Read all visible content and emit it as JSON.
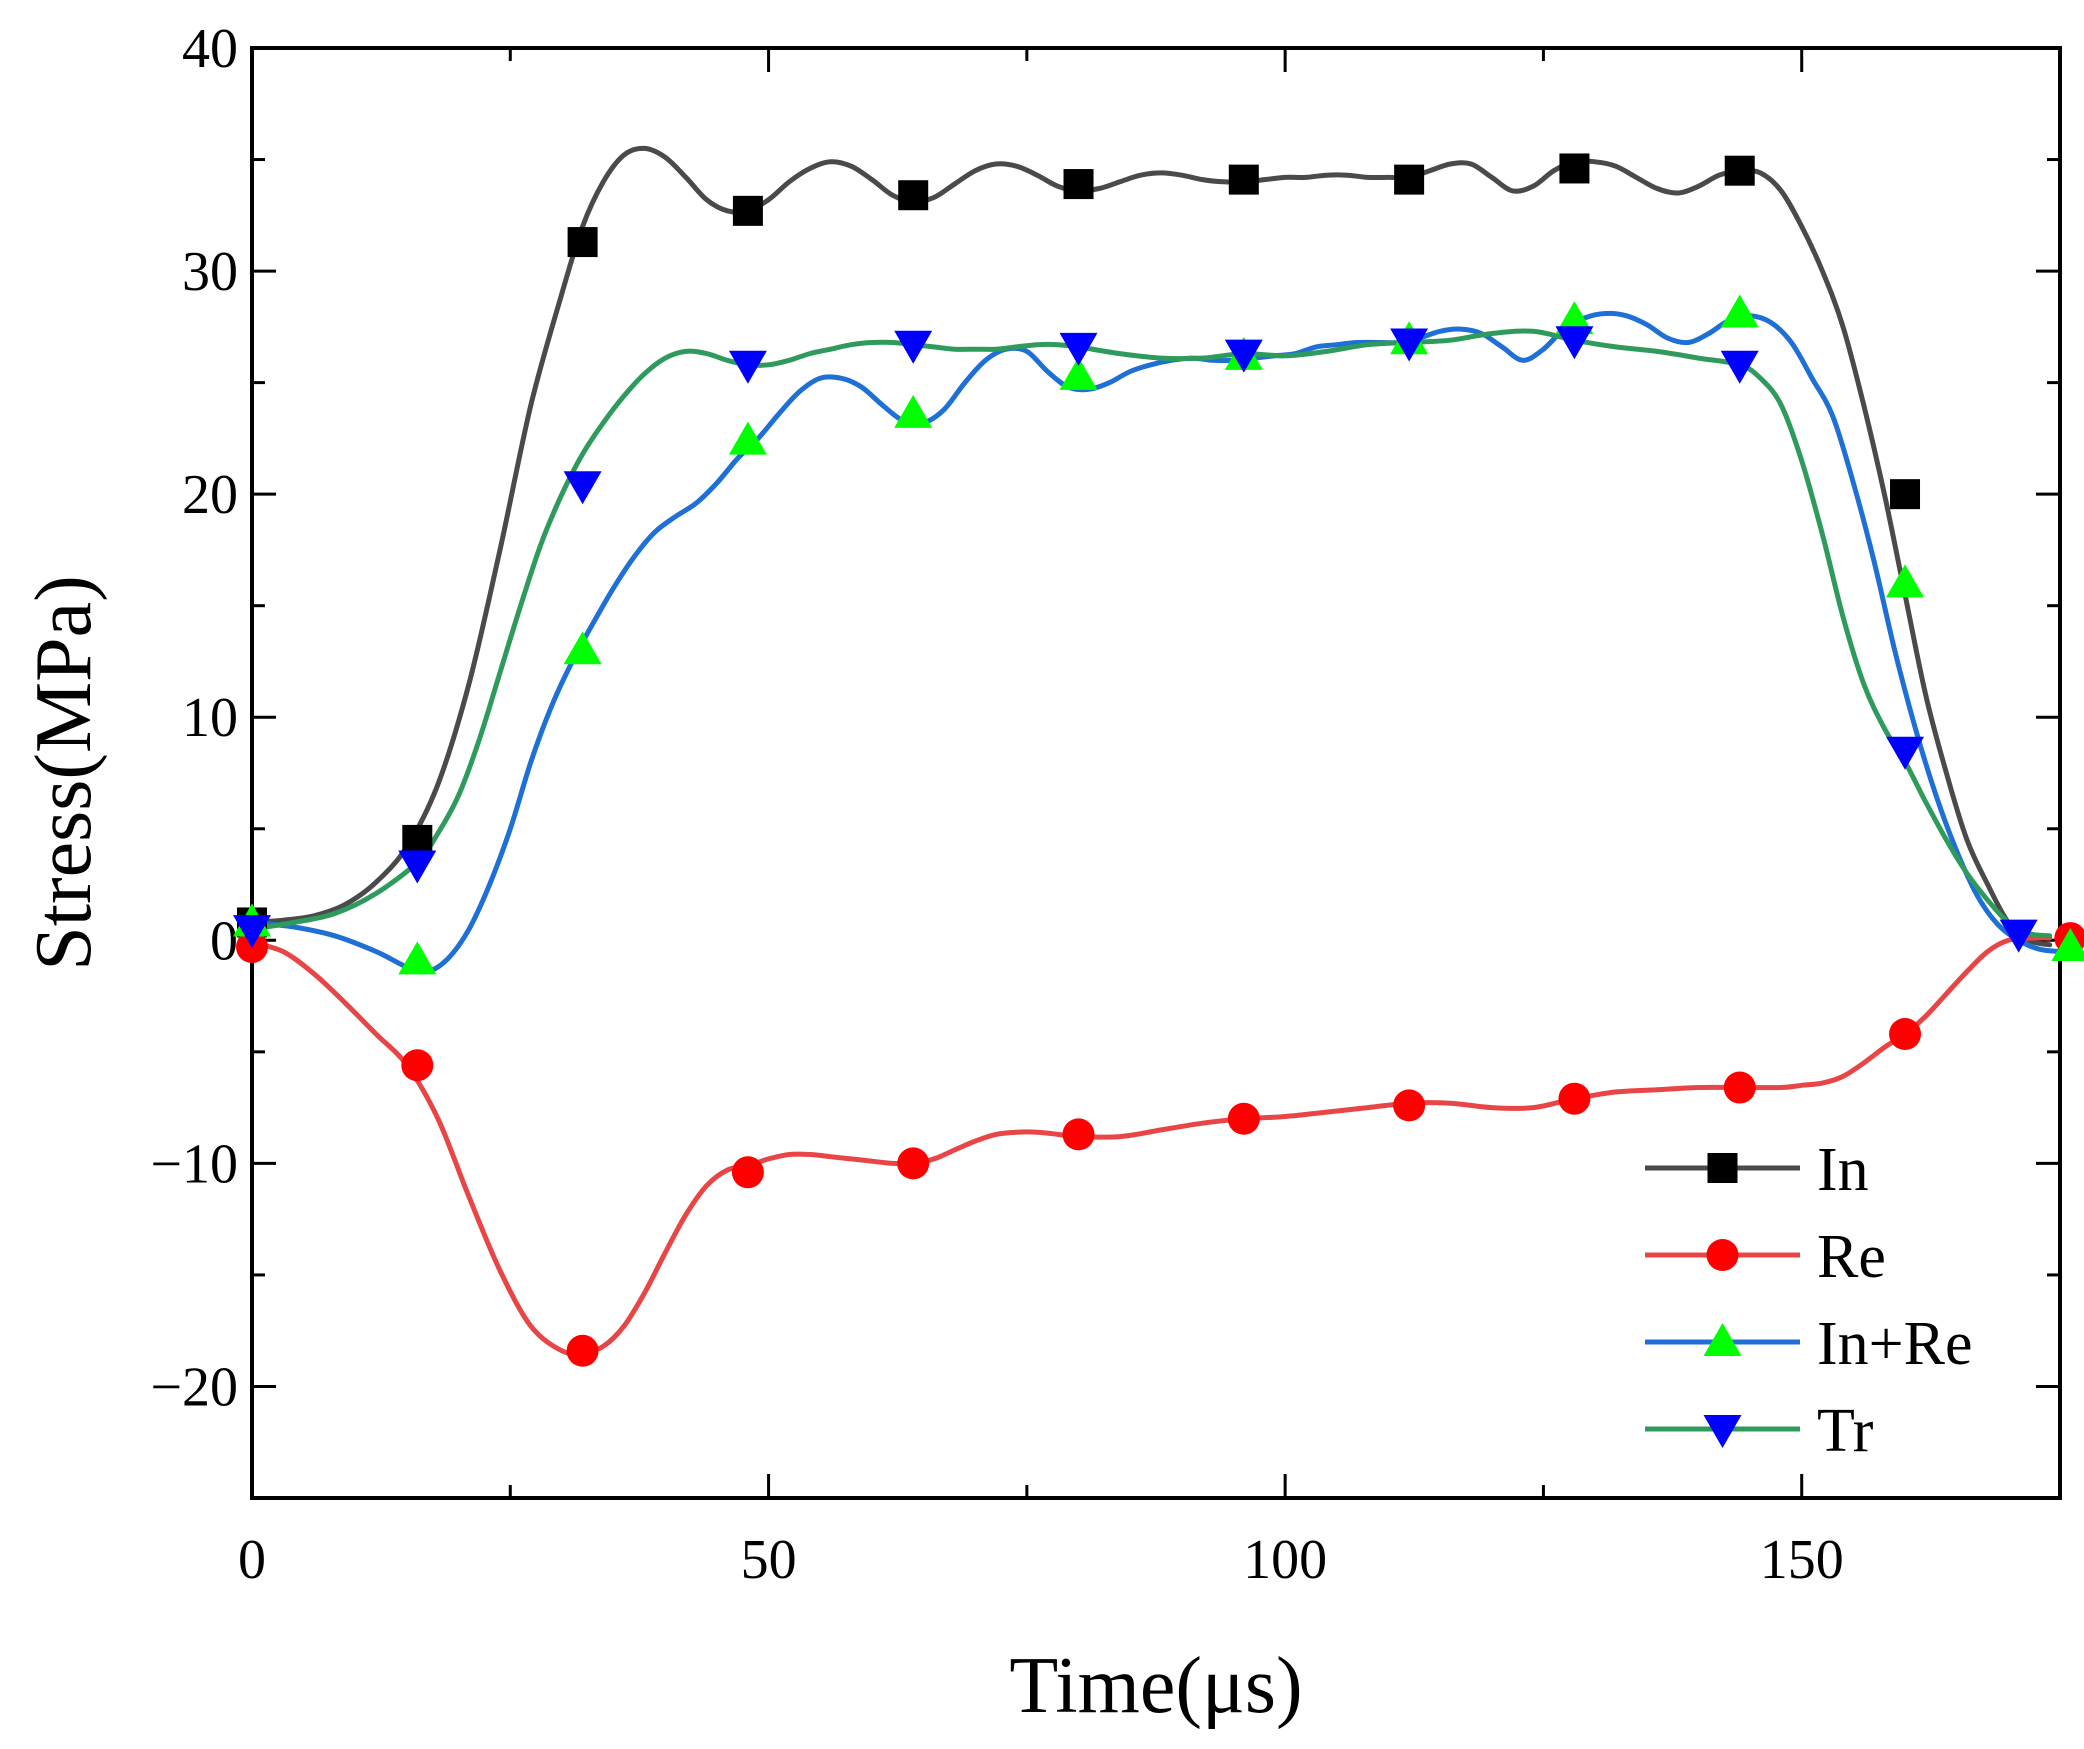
{
  "chart_data": {
    "type": "line",
    "title": "",
    "xlabel": "Time(μs)",
    "ylabel": "Stress(MPa)",
    "xlim": [
      0,
      175
    ],
    "ylim": [
      -25,
      40
    ],
    "xticks": [
      0,
      50,
      100,
      150
    ],
    "xtick_labels": [
      "0",
      "50",
      "100",
      "150"
    ],
    "yticks": [
      -20,
      -10,
      0,
      10,
      20,
      30,
      40
    ],
    "ytick_labels": [
      "−20",
      "−10",
      "0",
      "10",
      "20",
      "30",
      "40"
    ],
    "x_minor_step": 25,
    "y_minor_step": 5,
    "grid": false,
    "legend_position": "bottom-right",
    "series": [
      {
        "name": "In",
        "color": "#4a4a4a",
        "marker": "square",
        "marker_color": "#000000",
        "x": [
          0,
          3,
          6,
          9,
          12,
          15,
          18,
          21,
          24,
          27,
          30,
          32,
          34,
          36,
          38,
          40,
          42,
          44,
          46,
          48,
          50,
          52,
          54,
          56,
          58,
          60,
          62,
          64,
          66,
          68,
          70,
          72,
          74,
          76,
          78,
          80,
          82,
          84,
          86,
          88,
          90,
          92,
          94,
          96,
          98,
          100,
          102,
          104,
          106,
          108,
          110,
          112,
          114,
          116,
          118,
          120,
          122,
          124,
          126,
          128,
          130,
          132,
          134,
          136,
          138,
          140,
          142,
          144,
          146,
          148,
          150,
          152,
          154,
          156,
          158,
          160,
          162,
          164,
          166,
          168,
          170,
          172,
          174
        ],
        "y": [
          0.8,
          0.9,
          1.1,
          1.6,
          2.6,
          4.2,
          7.0,
          11.5,
          17.5,
          24.0,
          29.0,
          32.0,
          34.0,
          35.2,
          35.5,
          35.1,
          34.2,
          33.2,
          32.7,
          32.7,
          33.2,
          34.0,
          34.6,
          34.9,
          34.7,
          34.1,
          33.4,
          33.1,
          33.3,
          33.9,
          34.5,
          34.8,
          34.7,
          34.3,
          33.8,
          33.6,
          33.7,
          34.0,
          34.3,
          34.4,
          34.3,
          34.1,
          34.0,
          34.0,
          34.1,
          34.2,
          34.2,
          34.3,
          34.3,
          34.2,
          34.2,
          34.2,
          34.5,
          34.8,
          34.8,
          34.2,
          33.6,
          33.8,
          34.5,
          34.9,
          34.9,
          34.7,
          34.2,
          33.7,
          33.5,
          33.8,
          34.3,
          34.5,
          34.4,
          33.6,
          32.0,
          30.0,
          27.5,
          24.0,
          20.0,
          15.5,
          11.0,
          7.5,
          4.5,
          2.5,
          0.8,
          0.0,
          -0.2
        ],
        "markers_x": [
          0,
          16,
          32,
          48,
          64,
          80,
          96,
          112,
          128,
          144,
          160
        ],
        "markers_y": [
          0.8,
          4.5,
          31.3,
          32.7,
          33.4,
          33.9,
          34.1,
          34.1,
          34.6,
          34.5,
          20.0
        ]
      },
      {
        "name": "Re",
        "color": "#e84646",
        "marker": "circle",
        "marker_color": "#ff0000",
        "x": [
          0,
          3,
          6,
          9,
          12,
          15,
          18,
          21,
          24,
          27,
          30,
          32,
          34,
          36,
          38,
          40,
          42,
          44,
          46,
          48,
          50,
          52,
          54,
          56,
          58,
          60,
          62,
          64,
          66,
          68,
          70,
          72,
          74,
          76,
          78,
          80,
          84,
          88,
          92,
          96,
          100,
          104,
          108,
          112,
          116,
          120,
          124,
          128,
          132,
          136,
          140,
          144,
          148,
          150,
          152,
          154,
          156,
          158,
          160,
          162,
          164,
          166,
          168,
          170,
          172,
          174
        ],
        "y": [
          -0.1,
          -0.5,
          -1.5,
          -2.8,
          -4.2,
          -5.6,
          -8.0,
          -11.5,
          -14.8,
          -17.3,
          -18.4,
          -18.5,
          -18.2,
          -17.3,
          -15.8,
          -14.0,
          -12.3,
          -11.0,
          -10.3,
          -10.1,
          -9.8,
          -9.6,
          -9.6,
          -9.7,
          -9.8,
          -9.9,
          -10.0,
          -10.0,
          -9.8,
          -9.4,
          -9.0,
          -8.7,
          -8.6,
          -8.6,
          -8.7,
          -8.8,
          -8.8,
          -8.5,
          -8.2,
          -8.0,
          -7.9,
          -7.7,
          -7.5,
          -7.3,
          -7.3,
          -7.5,
          -7.5,
          -7.1,
          -6.8,
          -6.7,
          -6.6,
          -6.6,
          -6.6,
          -6.5,
          -6.4,
          -6.1,
          -5.5,
          -4.8,
          -4.2,
          -3.4,
          -2.4,
          -1.4,
          -0.5,
          0.0,
          0.1,
          0.1
        ],
        "markers_x": [
          0,
          16,
          32,
          48,
          64,
          80,
          96,
          112,
          128,
          144,
          160,
          176
        ],
        "markers_y": [
          -0.3,
          -5.6,
          -18.4,
          -10.4,
          -10.0,
          -8.7,
          -8.0,
          -7.4,
          -7.1,
          -6.6,
          -4.2,
          0.1
        ]
      },
      {
        "name": "In+Re",
        "color": "#1e6fd6",
        "marker": "triangle-up",
        "marker_color": "#00ff00",
        "x": [
          0,
          4,
          8,
          12,
          15,
          17,
          19,
          21,
          23,
          25,
          27,
          29,
          31,
          33,
          35,
          37,
          39,
          41,
          43,
          45,
          47,
          49,
          51,
          53,
          55,
          57,
          59,
          61,
          63,
          65,
          67,
          69,
          71,
          73,
          75,
          77,
          79,
          81,
          83,
          85,
          87,
          89,
          91,
          93,
          95,
          97,
          99,
          101,
          103,
          105,
          107,
          109,
          111,
          113,
          115,
          117,
          119,
          121,
          123,
          125,
          127,
          129,
          131,
          133,
          135,
          137,
          139,
          141,
          143,
          145,
          147,
          149,
          151,
          153,
          155,
          157,
          159,
          161,
          163,
          165,
          167,
          169,
          171,
          173,
          175
        ],
        "y": [
          0.8,
          0.6,
          0.2,
          -0.5,
          -1.2,
          -1.4,
          -0.8,
          0.5,
          2.5,
          5.0,
          8.0,
          10.5,
          12.5,
          14.2,
          15.8,
          17.2,
          18.3,
          19.0,
          19.6,
          20.5,
          21.6,
          22.5,
          23.6,
          24.6,
          25.2,
          25.2,
          24.8,
          24.0,
          23.3,
          23.2,
          23.8,
          25.0,
          26.0,
          26.5,
          26.4,
          25.5,
          24.8,
          24.7,
          25.0,
          25.5,
          25.8,
          26.0,
          26.1,
          26.0,
          26.0,
          26.1,
          26.2,
          26.3,
          26.6,
          26.7,
          26.8,
          26.8,
          26.8,
          27.0,
          27.3,
          27.4,
          27.2,
          26.6,
          26.0,
          26.5,
          27.4,
          27.9,
          28.1,
          28.0,
          27.6,
          27.0,
          26.8,
          27.2,
          27.8,
          28.0,
          27.7,
          26.8,
          25.2,
          23.5,
          20.5,
          17.0,
          13.0,
          9.5,
          6.5,
          4.0,
          2.0,
          0.7,
          0.0,
          -0.4,
          -0.5
        ],
        "markers_x": [
          0,
          16,
          32,
          48,
          64,
          80,
          96,
          112,
          128,
          144,
          160,
          176
        ],
        "markers_y": [
          0.8,
          -0.9,
          13.0,
          22.4,
          23.6,
          25.3,
          26.2,
          26.9,
          27.8,
          28.1,
          16.0,
          -0.3
        ]
      },
      {
        "name": "Tr",
        "color": "#2e9b5c",
        "marker": "triangle-down",
        "marker_color": "#0000ff",
        "x": [
          0,
          4,
          8,
          12,
          16,
          18,
          20,
          22,
          24,
          26,
          28,
          30,
          32,
          34,
          36,
          38,
          40,
          42,
          44,
          46,
          48,
          50,
          52,
          54,
          56,
          58,
          60,
          62,
          64,
          66,
          68,
          70,
          72,
          74,
          76,
          78,
          80,
          84,
          88,
          92,
          96,
          100,
          104,
          108,
          112,
          116,
          120,
          124,
          128,
          132,
          136,
          140,
          144,
          146,
          148,
          150,
          152,
          154,
          156,
          158,
          160,
          162,
          164,
          166,
          168,
          170,
          172,
          174
        ],
        "y": [
          0.5,
          0.8,
          1.2,
          2.1,
          3.5,
          4.8,
          6.5,
          9.0,
          12.0,
          15.0,
          17.8,
          20.0,
          21.8,
          23.2,
          24.4,
          25.4,
          26.1,
          26.4,
          26.3,
          26.0,
          25.8,
          25.8,
          26.0,
          26.3,
          26.5,
          26.7,
          26.8,
          26.8,
          26.7,
          26.6,
          26.5,
          26.5,
          26.5,
          26.6,
          26.7,
          26.7,
          26.6,
          26.3,
          26.1,
          26.1,
          26.3,
          26.2,
          26.4,
          26.7,
          26.8,
          26.9,
          27.2,
          27.3,
          26.9,
          26.6,
          26.4,
          26.1,
          25.8,
          25.2,
          24.0,
          21.5,
          18.2,
          14.5,
          11.5,
          9.5,
          8.0,
          6.2,
          4.5,
          3.0,
          1.8,
          0.8,
          0.3,
          0.2
        ],
        "markers_x": [
          0,
          16,
          32,
          48,
          64,
          80,
          96,
          112,
          128,
          144,
          160,
          171
        ],
        "markers_y": [
          0.5,
          3.4,
          20.4,
          25.8,
          26.7,
          26.6,
          26.3,
          26.8,
          26.9,
          25.8,
          8.5,
          0.3
        ]
      }
    ]
  }
}
